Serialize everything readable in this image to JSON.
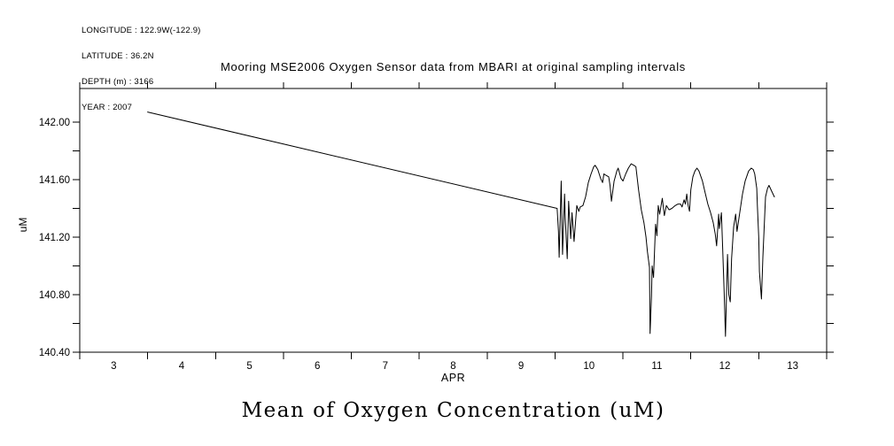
{
  "metadata": {
    "lines": [
      "LONGITUDE : 122.9W(-122.9)",
      "LATITUDE : 36.2N",
      "DEPTH (m) : 3166",
      "YEAR : 2007"
    ]
  },
  "footer_title": "Mean of Oxygen Concentration (uM)",
  "chart_data": {
    "type": "line",
    "title": "Mooring MSE2006 Oxygen Sensor data from MBARI at original sampling intervals",
    "xlabel": "APR",
    "ylabel": "uM",
    "xlim": [
      2.5,
      13.5
    ],
    "ylim": [
      140.4,
      142.234
    ],
    "grid": false,
    "legend": "none",
    "background": "#ffffff",
    "frame_color": "#000000",
    "line_color": "#000000",
    "x_ticks": [
      2.5,
      3.5,
      4.5,
      5.5,
      6.5,
      7.5,
      8.5,
      9.5,
      10.5,
      11.5,
      12.5,
      13.5
    ],
    "x_tick_labels": [
      {
        "label": "3",
        "day": 3
      },
      {
        "label": "4",
        "day": 4
      },
      {
        "label": "5",
        "day": 5
      },
      {
        "label": "6",
        "day": 6
      },
      {
        "label": "7",
        "day": 7
      },
      {
        "label": "8",
        "day": 8
      },
      {
        "label": "9",
        "day": 9
      },
      {
        "label": "10",
        "day": 10
      },
      {
        "label": "11",
        "day": 11
      },
      {
        "label": "12",
        "day": 12
      },
      {
        "label": "13",
        "day": 13
      }
    ],
    "y_ticks": [
      {
        "value": 142.0,
        "label": "142.00"
      },
      {
        "value": 141.8
      },
      {
        "value": 141.6,
        "label": "141.60"
      },
      {
        "value": 141.4
      },
      {
        "value": 141.2,
        "label": "141.20"
      },
      {
        "value": 141.0
      },
      {
        "value": 140.8,
        "label": "140.80"
      },
      {
        "value": 140.6
      },
      {
        "value": 140.4,
        "label": "140.40"
      }
    ],
    "series": [
      {
        "name": "Mean of Oxygen Concentration (uM)",
        "points": [
          [
            3.5,
            142.07
          ],
          [
            9.53,
            141.4
          ],
          [
            9.55,
            141.24
          ],
          [
            9.56,
            141.06
          ],
          [
            9.59,
            141.59
          ],
          [
            9.61,
            141.08
          ],
          [
            9.64,
            141.5
          ],
          [
            9.65,
            141.33
          ],
          [
            9.68,
            141.05
          ],
          [
            9.7,
            141.45
          ],
          [
            9.73,
            141.19
          ],
          [
            9.75,
            141.37
          ],
          [
            9.78,
            141.17
          ],
          [
            9.82,
            141.42
          ],
          [
            9.85,
            141.38
          ],
          [
            9.87,
            141.41
          ],
          [
            9.91,
            141.42
          ],
          [
            9.95,
            141.48
          ],
          [
            9.99,
            141.58
          ],
          [
            10.03,
            141.64
          ],
          [
            10.07,
            141.69
          ],
          [
            10.09,
            141.7
          ],
          [
            10.13,
            141.67
          ],
          [
            10.17,
            141.61
          ],
          [
            10.2,
            141.58
          ],
          [
            10.22,
            141.64
          ],
          [
            10.25,
            141.63
          ],
          [
            10.29,
            141.62
          ],
          [
            10.31,
            141.56
          ],
          [
            10.33,
            141.45
          ],
          [
            10.37,
            141.59
          ],
          [
            10.41,
            141.66
          ],
          [
            10.43,
            141.68
          ],
          [
            10.47,
            141.61
          ],
          [
            10.5,
            141.59
          ],
          [
            10.54,
            141.64
          ],
          [
            10.58,
            141.68
          ],
          [
            10.62,
            141.71
          ],
          [
            10.66,
            141.7
          ],
          [
            10.69,
            141.69
          ],
          [
            10.73,
            141.53
          ],
          [
            10.77,
            141.39
          ],
          [
            10.81,
            141.3
          ],
          [
            10.84,
            141.2
          ],
          [
            10.86,
            141.1
          ],
          [
            10.89,
            140.99
          ],
          [
            10.9,
            140.53
          ],
          [
            10.92,
            140.79
          ],
          [
            10.93,
            141.0
          ],
          [
            10.95,
            140.92
          ],
          [
            10.98,
            141.29
          ],
          [
            11.0,
            141.21
          ],
          [
            11.02,
            141.42
          ],
          [
            11.04,
            141.36
          ],
          [
            11.08,
            141.47
          ],
          [
            11.11,
            141.35
          ],
          [
            11.14,
            141.42
          ],
          [
            11.18,
            141.39
          ],
          [
            11.22,
            141.4
          ],
          [
            11.27,
            141.42
          ],
          [
            11.31,
            141.43
          ],
          [
            11.35,
            141.43
          ],
          [
            11.37,
            141.41
          ],
          [
            11.4,
            141.46
          ],
          [
            11.42,
            141.43
          ],
          [
            11.44,
            141.5
          ],
          [
            11.46,
            141.42
          ],
          [
            11.48,
            141.38
          ],
          [
            11.5,
            141.53
          ],
          [
            11.53,
            141.62
          ],
          [
            11.56,
            141.66
          ],
          [
            11.59,
            141.68
          ],
          [
            11.62,
            141.66
          ],
          [
            11.67,
            141.59
          ],
          [
            11.71,
            141.51
          ],
          [
            11.75,
            141.43
          ],
          [
            11.79,
            141.37
          ],
          [
            11.83,
            141.3
          ],
          [
            11.86,
            141.22
          ],
          [
            11.88,
            141.14
          ],
          [
            11.91,
            141.36
          ],
          [
            11.92,
            141.26
          ],
          [
            11.95,
            141.37
          ],
          [
            11.97,
            141.11
          ],
          [
            11.99,
            140.82
          ],
          [
            12.01,
            140.51
          ],
          [
            12.04,
            141.08
          ],
          [
            12.06,
            140.8
          ],
          [
            12.08,
            140.75
          ],
          [
            12.1,
            141.05
          ],
          [
            12.13,
            141.27
          ],
          [
            12.16,
            141.36
          ],
          [
            12.18,
            141.24
          ],
          [
            12.22,
            141.37
          ],
          [
            12.26,
            141.5
          ],
          [
            12.3,
            141.59
          ],
          [
            12.35,
            141.66
          ],
          [
            12.39,
            141.68
          ],
          [
            12.42,
            141.67
          ],
          [
            12.44,
            141.64
          ],
          [
            12.47,
            141.54
          ],
          [
            12.48,
            141.42
          ],
          [
            12.5,
            141.19
          ],
          [
            12.51,
            140.96
          ],
          [
            12.54,
            140.77
          ],
          [
            12.56,
            141.06
          ],
          [
            12.58,
            141.27
          ],
          [
            12.6,
            141.48
          ],
          [
            12.63,
            141.54
          ],
          [
            12.65,
            141.56
          ],
          [
            12.69,
            141.52
          ],
          [
            12.73,
            141.48
          ]
        ]
      }
    ]
  }
}
